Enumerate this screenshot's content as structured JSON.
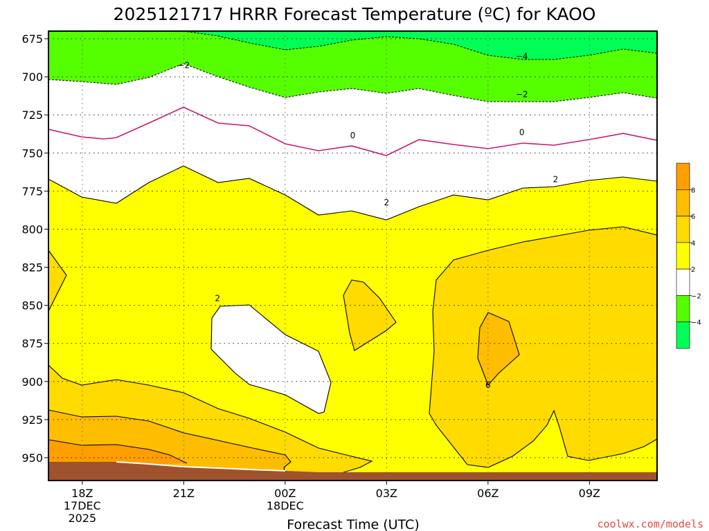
{
  "chart_data": {
    "type": "heatmap",
    "title": "2025121717 HRRR Forecast Temperature (ºC) for KAOO",
    "xlabel": "Forecast Time (UTC)",
    "ylabel": "",
    "y_scale": "pressure (reversed, hPa)",
    "ylim": [
      965,
      670
    ],
    "y_ticks": [
      675,
      700,
      725,
      750,
      775,
      800,
      825,
      850,
      875,
      900,
      925,
      950
    ],
    "x_range_hours_utc": [
      "2025-12-17 17:00",
      "2025-12-18 11:00"
    ],
    "x_ticks": [
      {
        "label": "18Z",
        "date": "17DEC",
        "year": "2025",
        "time": "2025-12-17 18:00"
      },
      {
        "label": "21Z",
        "date": "",
        "year": "",
        "time": "2025-12-17 21:00"
      },
      {
        "label": "00Z",
        "date": "18DEC",
        "year": "",
        "time": "2025-12-18 00:00"
      },
      {
        "label": "03Z",
        "date": "",
        "year": "",
        "time": "2025-12-18 03:00"
      },
      {
        "label": "06Z",
        "date": "",
        "year": "",
        "time": "2025-12-18 06:00"
      },
      {
        "label": "09Z",
        "date": "",
        "year": "",
        "time": "2025-12-18 09:00"
      }
    ],
    "grid": true,
    "colorbar": {
      "placement": "right",
      "bins": [
        {
          "range": [
            8,
            10
          ],
          "color": "#ff9e00"
        },
        {
          "range": [
            6,
            8
          ],
          "color": "#ffbd00"
        },
        {
          "range": [
            4,
            6
          ],
          "color": "#ffdb00"
        },
        {
          "range": [
            2,
            4
          ],
          "color": "#ffff00"
        },
        {
          "range": [
            -2,
            2
          ],
          "color": "#ffffff"
        },
        {
          "range": [
            -4,
            -2
          ],
          "color": "#55ff00"
        },
        {
          "range": [
            -6,
            -4
          ],
          "color": "#00ff55"
        }
      ],
      "tick_labels": [
        "8",
        "6",
        "4",
        "2",
        "−2",
        "−4"
      ]
    },
    "contour_labels": [
      {
        "value": "−4",
        "time": "2025-12-18 07:00",
        "pressure": 686
      },
      {
        "value": "−2",
        "time": "2025-12-17 21:00",
        "pressure": 692
      },
      {
        "value": "−2",
        "time": "2025-12-18 07:00",
        "pressure": 711
      },
      {
        "value": "0",
        "time": "2025-12-18 02:00",
        "pressure": 738
      },
      {
        "value": "0",
        "time": "2025-12-18 07:00",
        "pressure": 736
      },
      {
        "value": "2",
        "time": "2025-12-18 03:00",
        "pressure": 782
      },
      {
        "value": "2",
        "time": "2025-12-18 08:00",
        "pressure": 767
      },
      {
        "value": "2",
        "time": "2025-12-17 22:00",
        "pressure": 845
      },
      {
        "value": "6",
        "time": "2025-12-18 06:00",
        "pressure": 902
      }
    ],
    "ground_color": "#a0522d"
  },
  "credit": "coolwx.com/models"
}
